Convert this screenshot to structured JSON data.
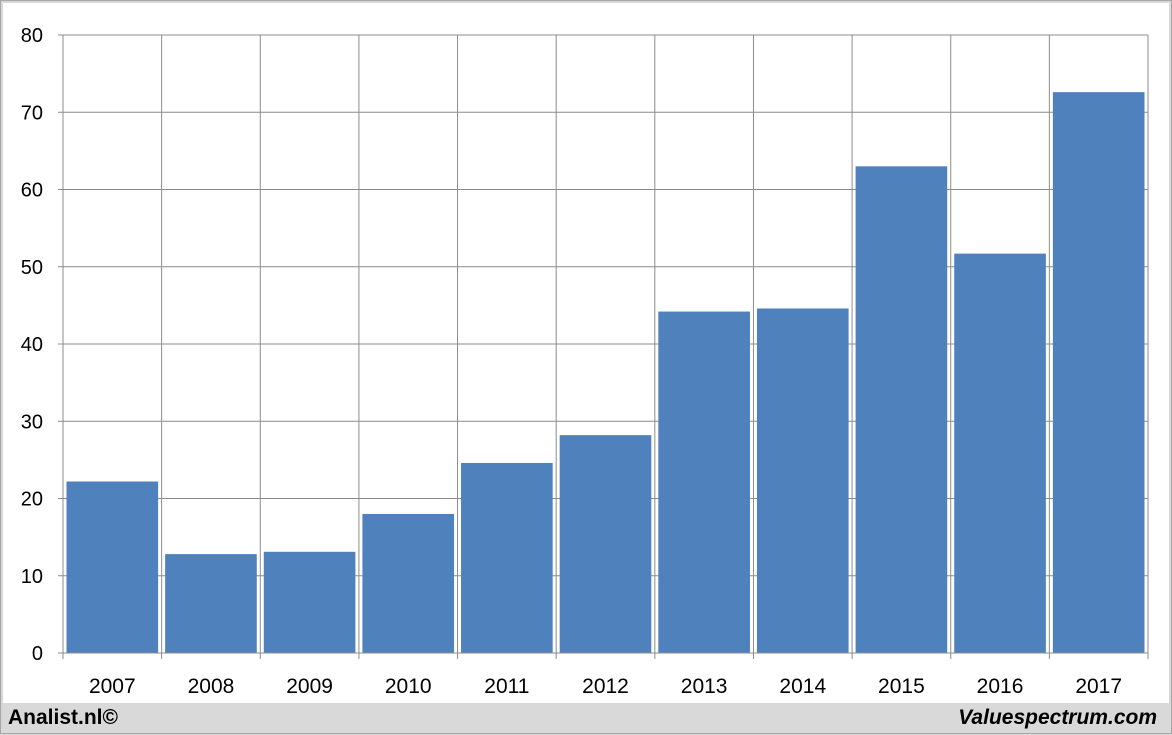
{
  "chart_data": {
    "type": "bar",
    "categories": [
      "2007",
      "2008",
      "2009",
      "2010",
      "2011",
      "2012",
      "2013",
      "2014",
      "2015",
      "2016",
      "2017"
    ],
    "values": [
      22.2,
      12.8,
      13.1,
      18.0,
      24.6,
      28.2,
      44.2,
      44.6,
      63.0,
      51.7,
      72.6
    ],
    "title": "",
    "xlabel": "",
    "ylabel": "",
    "ylim": [
      0,
      80
    ],
    "yticks": [
      "0",
      "10",
      "20",
      "30",
      "40",
      "50",
      "60",
      "70",
      "80"
    ],
    "grid": true,
    "legend": "none",
    "bar_color": "#4f81bd"
  },
  "footer": {
    "left": "Analist.nl©",
    "right": "Valuespectrum.com"
  }
}
